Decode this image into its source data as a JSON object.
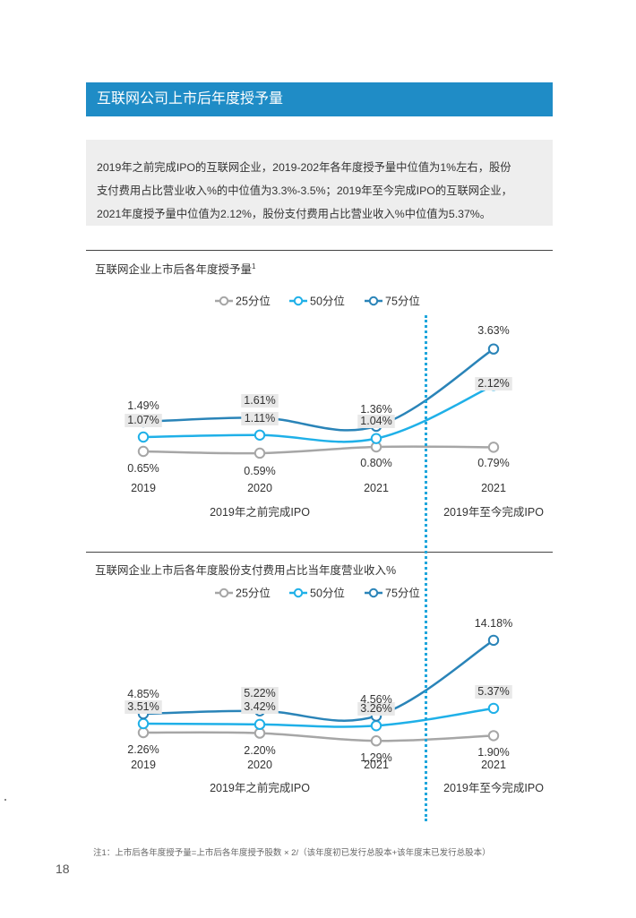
{
  "page": {
    "section_title": "互联网公司上市后年度授予量",
    "summary_lines": [
      "2019年之前完成IPO的互联网企业，2019-202年各年度授予量中位值为1%左右，股份",
      "支付费用占比营业收入%的中位值为3.3%-3.5%；2019年至今完成IPO的互联网企业，",
      "2021年度授予量中位值为2.12%，股份支付费用占比营业收入%中位值为5.37%。"
    ],
    "footnote": "注1：上市后各年度授予量=上市后各年度授予股数 × 2/（该年度初已发行总股本+该年度末已发行总股本）",
    "page_number": "18"
  },
  "colors": {
    "brand": "#1f8cc6",
    "p25": "#a6a6a6",
    "p50": "#1fb0e8",
    "p75": "#2a84b8",
    "divider": "#1fa6dc"
  },
  "chart_data": [
    {
      "type": "line",
      "title": "互联网企业上市后各年度授予量",
      "title_sup": "1",
      "categories": [
        "2019",
        "2020",
        "2021",
        "2021"
      ],
      "groups": [
        "2019年之前完成IPO",
        "2019年至今完成IPO"
      ],
      "legend_position": "top",
      "series": [
        {
          "name": "25分位",
          "key": "p25",
          "values": [
            0.65,
            0.59,
            0.8,
            0.79
          ],
          "labels": [
            "0.65%",
            "0.59%",
            "0.80%",
            "0.79%"
          ]
        },
        {
          "name": "50分位",
          "key": "p50",
          "values": [
            1.07,
            1.11,
            1.04,
            2.12
          ],
          "labels": [
            "1.07%",
            "1.11%",
            "1.04%",
            "2.12%"
          ]
        },
        {
          "name": "75分位",
          "key": "p75",
          "values": [
            1.49,
            1.61,
            1.36,
            3.63
          ],
          "labels": [
            "1.49%",
            "1.61%",
            "1.36%",
            "3.63%"
          ]
        }
      ]
    },
    {
      "type": "line",
      "title": "互联网企业上市后各年度股份支付费用占比当年度营业收入%",
      "title_sup": "",
      "categories": [
        "2019",
        "2020",
        "2021",
        "2021"
      ],
      "groups": [
        "2019年之前完成IPO",
        "2019年至今完成IPO"
      ],
      "legend_position": "top",
      "series": [
        {
          "name": "25分位",
          "key": "p25",
          "values": [
            2.26,
            2.2,
            1.29,
            1.9
          ],
          "labels": [
            "2.26%",
            "2.20%",
            "1.29%",
            "1.90%"
          ]
        },
        {
          "name": "50分位",
          "key": "p50",
          "values": [
            3.51,
            3.42,
            3.26,
            5.37
          ],
          "labels": [
            "3.51%",
            "3.42%",
            "3.26%",
            "5.37%"
          ]
        },
        {
          "name": "75分位",
          "key": "p75",
          "values": [
            4.85,
            5.22,
            4.56,
            14.18
          ],
          "labels": [
            "4.85%",
            "5.22%",
            "4.56%",
            "14.18%"
          ]
        }
      ]
    }
  ]
}
